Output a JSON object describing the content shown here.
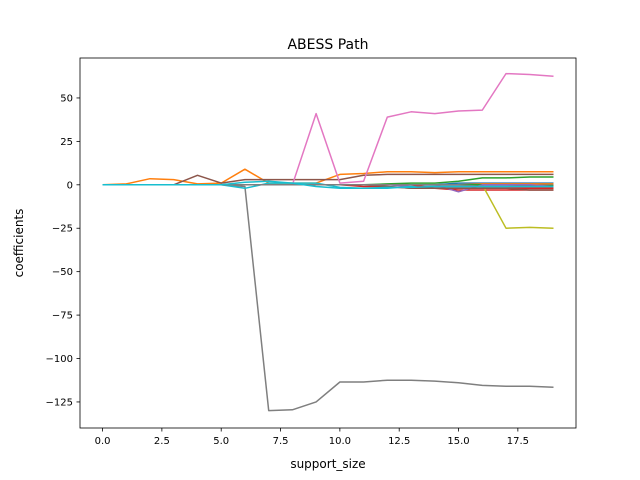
{
  "chart_data": {
    "type": "line",
    "title": "ABESS Path",
    "xlabel": "support_size",
    "ylabel": "coefficients",
    "xlim": [
      -0.95,
      19.95
    ],
    "ylim": [
      -140,
      73
    ],
    "x": [
      0,
      1,
      2,
      3,
      4,
      5,
      6,
      7,
      8,
      9,
      10,
      11,
      12,
      13,
      14,
      15,
      16,
      17,
      18,
      19
    ],
    "xticks": [
      0.0,
      2.5,
      5.0,
      7.5,
      10.0,
      12.5,
      15.0,
      17.5
    ],
    "xtick_labels": [
      "0.0",
      "2.5",
      "5.0",
      "7.5",
      "10.0",
      "12.5",
      "15.0",
      "17.5"
    ],
    "yticks": [
      50,
      25,
      0,
      -25,
      -50,
      -75,
      -100,
      -125
    ],
    "ytick_labels": [
      "50",
      "25",
      "0",
      "−25",
      "−50",
      "−75",
      "−100",
      "−125"
    ],
    "grid": false,
    "legend": false,
    "series": [
      {
        "color": "#1f77b4",
        "values": [
          0,
          0,
          0,
          0,
          0,
          0,
          0,
          0,
          0,
          0,
          0,
          0,
          0,
          0,
          0,
          0,
          0,
          0,
          0,
          0
        ]
      },
      {
        "color": "#ff7f0e",
        "values": [
          0,
          0.5,
          3.5,
          3,
          0.5,
          1,
          9,
          1,
          1,
          1,
          6,
          6.5,
          7.5,
          7.5,
          7,
          7.5,
          7.5,
          7.5,
          7.5,
          7.5
        ]
      },
      {
        "color": "#2ca02c",
        "values": [
          0,
          0,
          0,
          0,
          0,
          0,
          0,
          0,
          0,
          0,
          0,
          0,
          0.5,
          1,
          1,
          2,
          4,
          4,
          4.5,
          4.5
        ]
      },
      {
        "color": "#d62728",
        "values": [
          0,
          0,
          0,
          0,
          0,
          0,
          0,
          0,
          0,
          0,
          0,
          -1,
          -1,
          -2,
          -2,
          -3,
          -3,
          -3,
          -3,
          -3
        ]
      },
      {
        "color": "#9467bd",
        "values": [
          0,
          0,
          0,
          0,
          0,
          0,
          0,
          0,
          0,
          0,
          0,
          0,
          0,
          -1,
          -1,
          -1,
          -1,
          -1,
          -1,
          -1
        ]
      },
      {
        "color": "#8c564b",
        "values": [
          0,
          0,
          0,
          0,
          5.5,
          1,
          3,
          3,
          3,
          3,
          3,
          5.5,
          6,
          6,
          6,
          6,
          6,
          6,
          6,
          6
        ]
      },
      {
        "color": "#e377c2",
        "values": [
          0,
          0,
          0,
          0,
          0,
          0,
          0,
          0,
          0,
          41,
          1,
          2,
          39,
          42,
          41,
          42.5,
          43,
          64,
          63.5,
          62.5
        ]
      },
      {
        "color": "#7f7f7f",
        "values": [
          0,
          0,
          0,
          0,
          0,
          0,
          -1,
          -130,
          -129.5,
          -125,
          -113.5,
          -113.5,
          -112.5,
          -112.5,
          -113,
          -114,
          -115.5,
          -116,
          -116,
          -116.5
        ]
      },
      {
        "color": "#bcbd22",
        "values": [
          0,
          0,
          0,
          0,
          0,
          0,
          0,
          0,
          0,
          0,
          0,
          0,
          0,
          0,
          0,
          0,
          0,
          -25,
          -24.5,
          -25
        ]
      },
      {
        "color": "#17becf",
        "values": [
          0,
          0,
          0,
          0,
          0,
          0,
          -2,
          1,
          1,
          1,
          -1.5,
          -2,
          -2,
          -1,
          -1,
          -1,
          -1,
          -1,
          -1,
          -1
        ]
      },
      {
        "color": "#1f77b4",
        "values": [
          0,
          0,
          0,
          0,
          0,
          0,
          0,
          0,
          0,
          0,
          0,
          0,
          0,
          0,
          0,
          1,
          1,
          1,
          1,
          1
        ]
      },
      {
        "color": "#ff7f0e",
        "values": [
          0,
          0,
          0,
          0,
          0,
          0,
          0,
          0,
          0,
          0,
          0,
          0,
          0,
          0,
          0,
          0,
          0.5,
          0.5,
          0.5,
          0.5
        ]
      },
      {
        "color": "#2ca02c",
        "values": [
          0,
          0,
          0,
          0,
          0,
          0,
          0,
          0,
          0,
          0,
          0,
          0,
          0,
          0,
          0,
          0,
          0,
          0,
          -0.5,
          -0.5
        ]
      },
      {
        "color": "#d62728",
        "values": [
          0,
          0,
          0,
          0,
          0,
          0,
          0,
          0,
          0,
          0,
          0,
          0,
          0,
          0,
          -2,
          -2,
          -2,
          -2,
          -2,
          -2
        ]
      },
      {
        "color": "#9467bd",
        "values": [
          0,
          0,
          0,
          0,
          0,
          0,
          0,
          0,
          0,
          0,
          0,
          0,
          0,
          0,
          0,
          -4,
          0,
          0,
          0,
          -1
        ]
      },
      {
        "color": "#8c564b",
        "values": [
          0,
          0,
          0,
          0,
          0,
          0,
          0,
          0,
          0,
          0,
          0,
          0,
          -1,
          -2,
          -2,
          -2,
          -2,
          -2,
          -3,
          -3
        ]
      },
      {
        "color": "#7f7f7f",
        "values": [
          0,
          0,
          0,
          0,
          0,
          0,
          0,
          0,
          0,
          0,
          0,
          0,
          0,
          0,
          0,
          0,
          -1,
          -1,
          -1,
          -1
        ]
      },
      {
        "color": "#17becf",
        "values": [
          0,
          0,
          0,
          0,
          0,
          0,
          1.5,
          2,
          1,
          -1,
          -2,
          -2,
          -1.5,
          -1.5,
          -1,
          -1,
          -1,
          -1,
          -1,
          -1
        ]
      }
    ]
  }
}
